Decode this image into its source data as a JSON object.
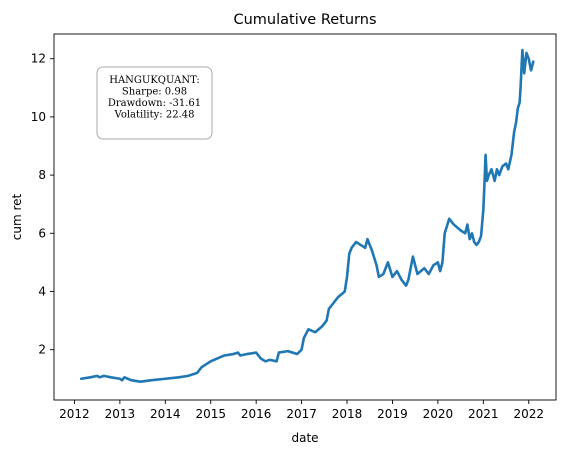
{
  "chart_data": {
    "type": "line",
    "title": "Cumulative Returns",
    "xlabel": "date",
    "ylabel": "cum ret",
    "x_ticks": [
      "2012",
      "2013",
      "2014",
      "2015",
      "2016",
      "2017",
      "2018",
      "2019",
      "2020",
      "2021",
      "2022"
    ],
    "y_ticks": [
      "2",
      "4",
      "6",
      "8",
      "10",
      "12"
    ],
    "xlim": [
      2011.55,
      2022.6
    ],
    "ylim": [
      0.27,
      12.85
    ],
    "grid": false,
    "legend": "none",
    "line_color": "#1f77b4",
    "annotation": {
      "lines": [
        "HANGUKQUANT:",
        "Sharpe: 0.98",
        "Drawdown: -31.61",
        "Volatility: 22.48"
      ],
      "placement": "top-left"
    },
    "series": [
      {
        "x": [
          2012.15,
          2012.35,
          2012.5,
          2012.55,
          2012.65,
          2012.8,
          2013.0,
          2013.05,
          2013.1,
          2013.25,
          2013.45,
          2013.7,
          2014.0,
          2014.3,
          2014.5,
          2014.7,
          2014.8,
          2015.0,
          2015.3,
          2015.5,
          2015.6,
          2015.65,
          2015.8,
          2016.0,
          2016.1,
          2016.2,
          2016.3,
          2016.45,
          2016.5,
          2016.7,
          2016.9,
          2017.0,
          2017.05,
          2017.15,
          2017.3,
          2017.45,
          2017.55,
          2017.6,
          2017.7,
          2017.8,
          2017.95,
          2018.0,
          2018.05,
          2018.1,
          2018.2,
          2018.3,
          2018.4,
          2018.45,
          2018.55,
          2018.65,
          2018.7,
          2018.8,
          2018.9,
          2019.0,
          2019.1,
          2019.2,
          2019.3,
          2019.35,
          2019.45,
          2019.55,
          2019.7,
          2019.8,
          2019.9,
          2020.0,
          2020.05,
          2020.1,
          2020.15,
          2020.25,
          2020.35,
          2020.5,
          2020.6,
          2020.65,
          2020.7,
          2020.75,
          2020.8,
          2020.85,
          2020.9,
          2020.95,
          2021.0,
          2021.02,
          2021.05,
          2021.08,
          2021.12,
          2021.18,
          2021.25,
          2021.3,
          2021.35,
          2021.42,
          2021.5,
          2021.55,
          2021.62,
          2021.68,
          2021.72,
          2021.76,
          2021.8,
          2021.82,
          2021.86,
          2021.9,
          2021.95,
          2022.0,
          2022.05,
          2022.1
        ],
        "y": [
          1.0,
          1.05,
          1.1,
          1.05,
          1.1,
          1.05,
          1.0,
          0.95,
          1.05,
          0.95,
          0.9,
          0.95,
          1.0,
          1.05,
          1.1,
          1.2,
          1.4,
          1.6,
          1.8,
          1.85,
          1.9,
          1.8,
          1.85,
          1.9,
          1.7,
          1.6,
          1.65,
          1.6,
          1.9,
          1.95,
          1.85,
          2.0,
          2.4,
          2.7,
          2.6,
          2.8,
          3.0,
          3.4,
          3.6,
          3.8,
          4.0,
          4.5,
          5.3,
          5.5,
          5.7,
          5.6,
          5.5,
          5.8,
          5.4,
          4.9,
          4.5,
          4.6,
          5.0,
          4.5,
          4.7,
          4.4,
          4.2,
          4.4,
          5.2,
          4.6,
          4.8,
          4.6,
          4.9,
          5.0,
          4.7,
          5.0,
          6.0,
          6.5,
          6.3,
          6.1,
          6.0,
          6.3,
          5.8,
          6.0,
          5.7,
          5.6,
          5.7,
          5.9,
          6.8,
          7.5,
          8.7,
          7.8,
          8.0,
          8.2,
          7.8,
          8.2,
          8.0,
          8.3,
          8.4,
          8.2,
          8.7,
          9.5,
          9.8,
          10.3,
          10.5,
          11.0,
          12.3,
          11.5,
          12.2,
          12.0,
          11.6,
          11.9
        ]
      }
    ]
  }
}
